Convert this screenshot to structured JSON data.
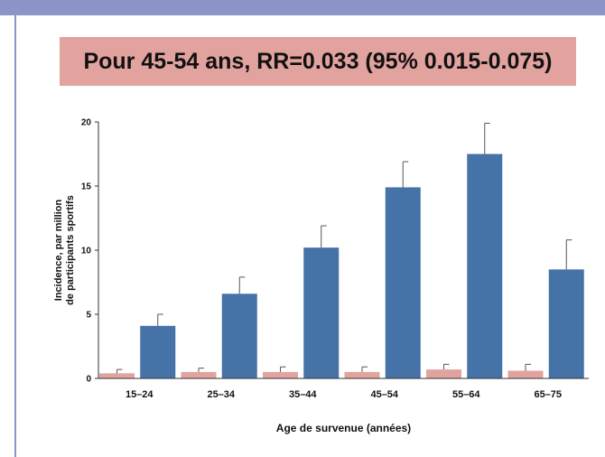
{
  "headline": "Pour 45-54 ans, RR=0.033 (95% 0.015-0.075)",
  "colors": {
    "band": "#8b95c7",
    "headline_bg": "#e2a39f",
    "series_other": "#e2a39f",
    "series_sport": "#4572a7"
  },
  "chart_data": {
    "type": "bar",
    "categories": [
      "15–24",
      "25–34",
      "35–44",
      "45–54",
      "55–64",
      "65–75"
    ],
    "series": [
      {
        "values": [
          0.4,
          0.5,
          0.5,
          0.5,
          0.7,
          0.6
        ],
        "error": [
          0.3,
          0.3,
          0.4,
          0.4,
          0.4,
          0.5
        ],
        "color": "#e2a39f"
      },
      {
        "values": [
          4.1,
          6.6,
          10.2,
          14.9,
          17.5,
          8.5
        ],
        "error": [
          0.9,
          1.3,
          1.7,
          2.0,
          2.4,
          2.3
        ],
        "color": "#4572a7"
      }
    ],
    "yticks": [
      0,
      5,
      10,
      15,
      20
    ],
    "ylim": [
      0,
      20
    ],
    "ylabel_lines": [
      "Incidence, par million",
      "de participants sportifs"
    ],
    "xlabel": "Age de survenue (années)",
    "grid": false
  }
}
